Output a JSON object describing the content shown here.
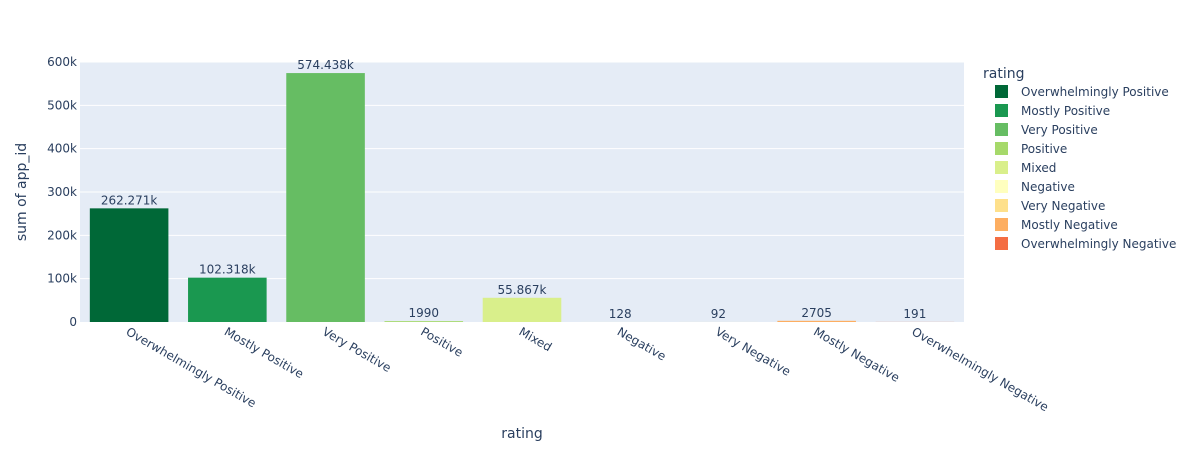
{
  "chart_data": {
    "type": "bar",
    "xlabel": "rating",
    "ylabel": "sum of app_id",
    "ylim": [
      0,
      600000
    ],
    "yticks": [
      0,
      100000,
      200000,
      300000,
      400000,
      500000,
      600000
    ],
    "ytick_labels": [
      "0",
      "100k",
      "200k",
      "300k",
      "400k",
      "500k",
      "600k"
    ],
    "categories": [
      "Overwhelmingly Positive",
      "Mostly Positive",
      "Very Positive",
      "Positive",
      "Mixed",
      "Negative",
      "Very Negative",
      "Mostly Negative",
      "Overwhelmingly Negative"
    ],
    "values": [
      262271,
      102318,
      574438,
      1990,
      55867,
      128,
      92,
      2705,
      191
    ],
    "data_labels": [
      "262.271k",
      "102.318k",
      "574.438k",
      "1990",
      "55.867k",
      "128",
      "92",
      "2705",
      "191"
    ],
    "colors": [
      "#006837",
      "#1a9850",
      "#66bd63",
      "#a6d96a",
      "#d9ef8b",
      "#ffffbf",
      "#fee08b",
      "#fdae61",
      "#f46d43"
    ],
    "grid": true,
    "legend": {
      "title": "rating",
      "placement": "right",
      "entries": [
        "Overwhelmingly Positive",
        "Mostly Positive",
        "Very Positive",
        "Positive",
        "Mixed",
        "Negative",
        "Very Negative",
        "Mostly Negative",
        "Overwhelmingly Negative"
      ]
    },
    "plot_background": "#e5ecf6"
  }
}
